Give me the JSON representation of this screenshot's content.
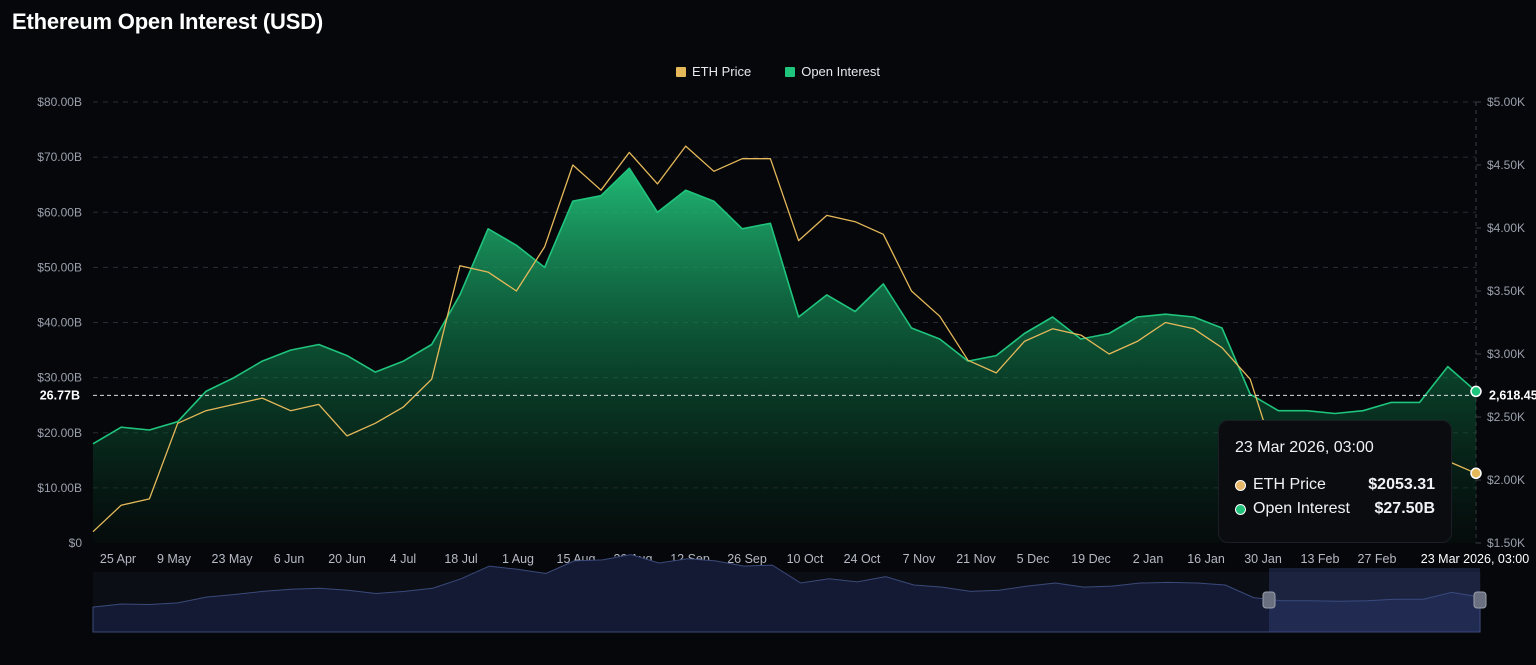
{
  "header": {
    "title": "Ethereum Open Interest (USD)"
  },
  "legend": [
    {
      "label": "ETH Price",
      "color": "#e5b95a"
    },
    {
      "label": "Open Interest",
      "color": "#1fc47d"
    }
  ],
  "tooltip": {
    "date": "23 Mar 2026, 03:00",
    "rows": [
      {
        "label": "ETH Price",
        "value": "$2053.31",
        "color": "#e8b86a"
      },
      {
        "label": "Open Interest",
        "value": "$27.50B",
        "color": "#22c27a"
      }
    ]
  },
  "crosshair": {
    "left_label": "26.77B",
    "right_label": "2,618.45",
    "y_value": 26.77
  },
  "chart_data": {
    "type": "area",
    "title": "Ethereum Open Interest (USD)",
    "x_ticks": [
      "25 Apr",
      "9 May",
      "23 May",
      "6 Jun",
      "20 Jun",
      "4 Jul",
      "18 Jul",
      "1 Aug",
      "15 Aug",
      "29 Aug",
      "12 Sep",
      "26 Sep",
      "10 Oct",
      "24 Oct",
      "7 Nov",
      "21 Nov",
      "5 Dec",
      "19 Dec",
      "2 Jan",
      "16 Jan",
      "30 Jan",
      "13 Feb",
      "27 Feb",
      "23 Mar 2026, 03:00"
    ],
    "y_left": {
      "ticks": [
        "$0",
        "$10.00B",
        "$20.00B",
        "$30.00B",
        "$40.00B",
        "$50.00B",
        "$60.00B",
        "$70.00B",
        "$80.00B"
      ],
      "min": 0,
      "max": 80,
      "unit": "B USD"
    },
    "y_right": {
      "ticks": [
        "$1.50K",
        "$2.00K",
        "$2.50K",
        "$3.00K",
        "$3.50K",
        "$4.00K",
        "$4.50K",
        "$5.00K"
      ],
      "min": 1500,
      "max": 5000,
      "unit": "USD"
    },
    "grid": true,
    "legend_position": "top-center",
    "series": [
      {
        "name": "Open Interest",
        "axis": "left",
        "color": "#1fc47d",
        "x": [
          "18 Apr",
          "25 Apr",
          "2 May",
          "9 May",
          "16 May",
          "23 May",
          "30 May",
          "6 Jun",
          "13 Jun",
          "20 Jun",
          "27 Jun",
          "4 Jul",
          "11 Jul",
          "18 Jul",
          "25 Jul",
          "1 Aug",
          "8 Aug",
          "15 Aug",
          "22 Aug",
          "29 Aug",
          "5 Sep",
          "12 Sep",
          "19 Sep",
          "26 Sep",
          "3 Oct",
          "10 Oct",
          "17 Oct",
          "24 Oct",
          "31 Oct",
          "7 Nov",
          "14 Nov",
          "21 Nov",
          "28 Nov",
          "5 Dec",
          "12 Dec",
          "19 Dec",
          "26 Dec",
          "2 Jan",
          "9 Jan",
          "16 Jan",
          "23 Jan",
          "30 Jan",
          "6 Feb",
          "13 Feb",
          "20 Feb",
          "27 Feb",
          "6 Mar",
          "13 Mar",
          "20 Mar",
          "23 Mar"
        ],
        "values": [
          18.0,
          21.0,
          20.5,
          22.0,
          27.5,
          30.0,
          33.0,
          35.0,
          36.0,
          34.0,
          31.0,
          33.0,
          36.0,
          45.0,
          57.0,
          54.0,
          50.0,
          62.0,
          63.0,
          68.0,
          60.0,
          64.0,
          62.0,
          57.0,
          58.0,
          41.0,
          45.0,
          42.0,
          47.0,
          39.0,
          37.0,
          33.0,
          34.0,
          38.0,
          41.0,
          37.0,
          38.0,
          41.0,
          41.5,
          41.0,
          39.0,
          27.0,
          24.0,
          24.0,
          23.5,
          24.0,
          25.5,
          25.5,
          32.0,
          27.5
        ]
      },
      {
        "name": "ETH Price",
        "axis": "right",
        "color": "#e5b95a",
        "x": [
          "18 Apr",
          "25 Apr",
          "2 May",
          "9 May",
          "16 May",
          "23 May",
          "30 May",
          "6 Jun",
          "13 Jun",
          "20 Jun",
          "27 Jun",
          "4 Jul",
          "11 Jul",
          "18 Jul",
          "25 Jul",
          "1 Aug",
          "8 Aug",
          "15 Aug",
          "22 Aug",
          "29 Aug",
          "5 Sep",
          "12 Sep",
          "19 Sep",
          "26 Sep",
          "3 Oct",
          "10 Oct",
          "17 Oct",
          "24 Oct",
          "31 Oct",
          "7 Nov",
          "14 Nov",
          "21 Nov",
          "28 Nov",
          "5 Dec",
          "12 Dec",
          "19 Dec",
          "26 Dec",
          "2 Jan",
          "9 Jan",
          "16 Jan",
          "23 Jan",
          "30 Jan",
          "6 Feb",
          "13 Feb",
          "20 Feb",
          "27 Feb",
          "6 Mar",
          "13 Mar",
          "20 Mar",
          "23 Mar"
        ],
        "values": [
          1590,
          1800,
          1850,
          2450,
          2550,
          2600,
          2650,
          2550,
          2600,
          2350,
          2450,
          2580,
          2800,
          3700,
          3650,
          3500,
          3850,
          4500,
          4300,
          4600,
          4350,
          4650,
          4450,
          4550,
          4550,
          3900,
          4100,
          4050,
          3950,
          3500,
          3300,
          2950,
          2850,
          3100,
          3200,
          3150,
          3000,
          3100,
          3250,
          3200,
          3050,
          2800,
          2100,
          2000,
          1950,
          2000,
          2050,
          2100,
          2150,
          2053.31
        ]
      }
    ],
    "overview_range": {
      "from": "30 Jan",
      "to": "23 Mar"
    }
  }
}
